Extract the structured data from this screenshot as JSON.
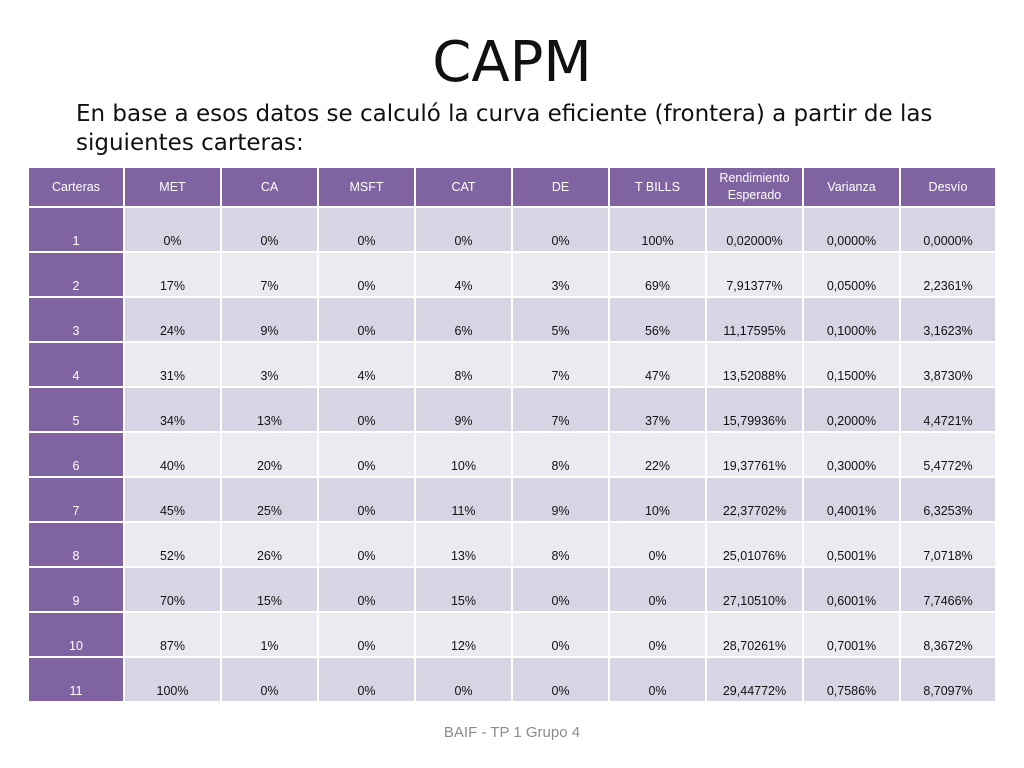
{
  "slide": {
    "title": "CAPM",
    "subtitle": "En base a esos datos  se calculó la curva eficiente (frontera) a partir de las siguientes carteras:",
    "footer": "BAIF - TP 1 Grupo 4"
  },
  "table": {
    "headers": [
      "Carteras",
      "MET",
      "CA",
      "MSFT",
      "CAT",
      "DE",
      "T BILLS",
      "Rendimiento Esperado",
      "Varianza",
      "Desvío"
    ],
    "rows": [
      [
        "1",
        "0%",
        "0%",
        "0%",
        "0%",
        "0%",
        "100%",
        "0,02000%",
        "0,0000%",
        "0,0000%"
      ],
      [
        "2",
        "17%",
        "7%",
        "0%",
        "4%",
        "3%",
        "69%",
        "7,91377%",
        "0,0500%",
        "2,2361%"
      ],
      [
        "3",
        "24%",
        "9%",
        "0%",
        "6%",
        "5%",
        "56%",
        "11,17595%",
        "0,1000%",
        "3,1623%"
      ],
      [
        "4",
        "31%",
        "3%",
        "4%",
        "8%",
        "7%",
        "47%",
        "13,52088%",
        "0,1500%",
        "3,8730%"
      ],
      [
        "5",
        "34%",
        "13%",
        "0%",
        "9%",
        "7%",
        "37%",
        "15,79936%",
        "0,2000%",
        "4,4721%"
      ],
      [
        "6",
        "40%",
        "20%",
        "0%",
        "10%",
        "8%",
        "22%",
        "19,37761%",
        "0,3000%",
        "5,4772%"
      ],
      [
        "7",
        "45%",
        "25%",
        "0%",
        "11%",
        "9%",
        "10%",
        "22,37702%",
        "0,4001%",
        "6,3253%"
      ],
      [
        "8",
        "52%",
        "26%",
        "0%",
        "13%",
        "8%",
        "0%",
        "25,01076%",
        "0,5001%",
        "7,0718%"
      ],
      [
        "9",
        "70%",
        "15%",
        "0%",
        "15%",
        "0%",
        "0%",
        "27,10510%",
        "0,6001%",
        "7,7466%"
      ],
      [
        "10",
        "87%",
        "1%",
        "0%",
        "12%",
        "0%",
        "0%",
        "28,70261%",
        "0,7001%",
        "8,3672%"
      ],
      [
        "11",
        "100%",
        "0%",
        "0%",
        "0%",
        "0%",
        "0%",
        "29,44772%",
        "0,7586%",
        "8,7097%"
      ]
    ]
  },
  "colors": {
    "header_purple": "#8064a2",
    "row_band_dark": "#d9d4e3",
    "row_band_light": "#ece9f1",
    "footer_gray": "#8c8c8c"
  }
}
